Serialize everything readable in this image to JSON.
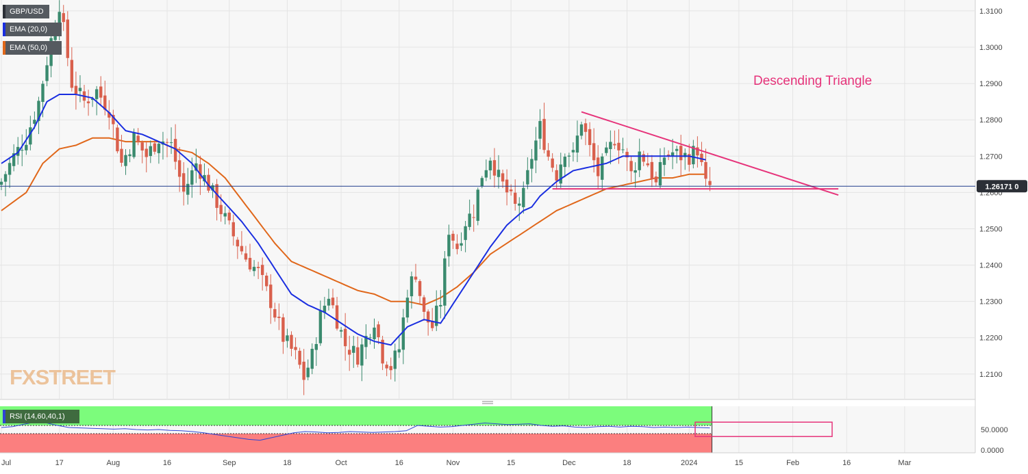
{
  "legend": {
    "pair": "GBP/USD",
    "ema20": "EMA (20,0)",
    "ema50": "EMA (50,0)",
    "rsi": "RSI (14,60,40,1)"
  },
  "watermark": "FXSTREET",
  "annotation": "Descending Triangle",
  "last_price": "1.26171 0",
  "colors": {
    "bull": "#3a8a6e",
    "bear": "#d9604d",
    "ema20": "#1a2ee0",
    "ema50": "#e0671a",
    "triangle": "#e6337a",
    "price_line": "#1f3a8a",
    "rsi_line": "#2f45d6",
    "rsi_upper_zone": "#7cfc7c",
    "rsi_lower_zone": "#fb7f7f",
    "label_bg": "#2b2f36"
  },
  "chart_data": {
    "type": "candlestick",
    "instrument": "GBP/USD",
    "y_range": [
      1.203,
      1.313
    ],
    "y_ticks": [
      "1.3100",
      "1.3000",
      "1.2900",
      "1.2800",
      "1.2700",
      "1.2600",
      "1.2500",
      "1.2400",
      "1.2300",
      "1.2200",
      "1.2100"
    ],
    "x_tick_labels": [
      "Jul",
      "17",
      "Aug",
      "16",
      "Sep",
      "18",
      "Oct",
      "16",
      "Nov",
      "15",
      "Dec",
      "18",
      "2024",
      "15",
      "Feb",
      "16",
      "Mar"
    ],
    "current_price": 1.26171,
    "anchors": [
      [
        0,
        1.263
      ],
      [
        3,
        1.27
      ],
      [
        6,
        1.275
      ],
      [
        9,
        1.285
      ],
      [
        12,
        1.302
      ],
      [
        14,
        1.312
      ],
      [
        17,
        1.29
      ],
      [
        20,
        1.285
      ],
      [
        23,
        1.288
      ],
      [
        26,
        1.283
      ],
      [
        29,
        1.268
      ],
      [
        32,
        1.275
      ],
      [
        35,
        1.27
      ],
      [
        38,
        1.275
      ],
      [
        41,
        1.273
      ],
      [
        44,
        1.26
      ],
      [
        47,
        1.268
      ],
      [
        50,
        1.262
      ],
      [
        53,
        1.255
      ],
      [
        56,
        1.248
      ],
      [
        59,
        1.242
      ],
      [
        62,
        1.238
      ],
      [
        65,
        1.23
      ],
      [
        68,
        1.22
      ],
      [
        71,
        1.215
      ],
      [
        73,
        1.209
      ],
      [
        75,
        1.215
      ],
      [
        77,
        1.226
      ],
      [
        79,
        1.232
      ],
      [
        81,
        1.225
      ],
      [
        83,
        1.218
      ],
      [
        86,
        1.215
      ],
      [
        88,
        1.22
      ],
      [
        90,
        1.225
      ],
      [
        92,
        1.215
      ],
      [
        94,
        1.212
      ],
      [
        96,
        1.217
      ],
      [
        98,
        1.233
      ],
      [
        100,
        1.238
      ],
      [
        102,
        1.226
      ],
      [
        104,
        1.223
      ],
      [
        106,
        1.23
      ],
      [
        108,
        1.25
      ],
      [
        110,
        1.245
      ],
      [
        112,
        1.252
      ],
      [
        114,
        1.255
      ],
      [
        116,
        1.265
      ],
      [
        118,
        1.27
      ],
      [
        120,
        1.264
      ],
      [
        122,
        1.26
      ],
      [
        124,
        1.256
      ],
      [
        126,
        1.259
      ],
      [
        128,
        1.27
      ],
      [
        130,
        1.278
      ],
      [
        132,
        1.27
      ],
      [
        134,
        1.265
      ],
      [
        136,
        1.272
      ],
      [
        138,
        1.27
      ],
      [
        140,
        1.28
      ],
      [
        142,
        1.272
      ],
      [
        144,
        1.265
      ],
      [
        146,
        1.27
      ],
      [
        148,
        1.275
      ],
      [
        150,
        1.272
      ],
      [
        152,
        1.265
      ],
      [
        154,
        1.271
      ],
      [
        156,
        1.268
      ],
      [
        158,
        1.262
      ],
      [
        160,
        1.27
      ],
      [
        162,
        1.271
      ],
      [
        164,
        1.27
      ],
      [
        166,
        1.27
      ],
      [
        168,
        1.272
      ],
      [
        170,
        1.262
      ],
      [
        171,
        1.2617
      ]
    ],
    "ema20_anchors": [
      [
        0,
        1.268
      ],
      [
        4,
        1.271
      ],
      [
        8,
        1.278
      ],
      [
        11,
        1.285
      ],
      [
        14,
        1.287
      ],
      [
        18,
        1.287
      ],
      [
        22,
        1.286
      ],
      [
        26,
        1.282
      ],
      [
        30,
        1.277
      ],
      [
        34,
        1.276
      ],
      [
        38,
        1.274
      ],
      [
        42,
        1.272
      ],
      [
        46,
        1.268
      ],
      [
        50,
        1.262
      ],
      [
        54,
        1.257
      ],
      [
        58,
        1.252
      ],
      [
        62,
        1.246
      ],
      [
        66,
        1.239
      ],
      [
        70,
        1.232
      ],
      [
        74,
        1.229
      ],
      [
        78,
        1.227
      ],
      [
        82,
        1.224
      ],
      [
        86,
        1.221
      ],
      [
        90,
        1.219
      ],
      [
        94,
        1.218
      ],
      [
        98,
        1.223
      ],
      [
        102,
        1.225
      ],
      [
        106,
        1.224
      ],
      [
        110,
        1.231
      ],
      [
        114,
        1.238
      ],
      [
        118,
        1.245
      ],
      [
        122,
        1.251
      ],
      [
        126,
        1.255
      ],
      [
        128,
        1.256
      ],
      [
        130,
        1.259
      ],
      [
        134,
        1.263
      ],
      [
        138,
        1.266
      ],
      [
        142,
        1.267
      ],
      [
        146,
        1.268
      ],
      [
        150,
        1.27
      ],
      [
        154,
        1.27
      ],
      [
        158,
        1.27
      ],
      [
        162,
        1.27
      ],
      [
        166,
        1.27
      ],
      [
        170,
        1.269
      ]
    ],
    "ema50_anchors": [
      [
        0,
        1.255
      ],
      [
        6,
        1.26
      ],
      [
        10,
        1.268
      ],
      [
        14,
        1.272
      ],
      [
        18,
        1.273
      ],
      [
        22,
        1.275
      ],
      [
        26,
        1.275
      ],
      [
        30,
        1.274
      ],
      [
        34,
        1.274
      ],
      [
        38,
        1.274
      ],
      [
        42,
        1.272
      ],
      [
        46,
        1.271
      ],
      [
        50,
        1.268
      ],
      [
        54,
        1.264
      ],
      [
        58,
        1.258
      ],
      [
        62,
        1.252
      ],
      [
        66,
        1.246
      ],
      [
        70,
        1.241
      ],
      [
        74,
        1.239
      ],
      [
        78,
        1.237
      ],
      [
        82,
        1.235
      ],
      [
        86,
        1.233
      ],
      [
        90,
        1.232
      ],
      [
        94,
        1.23
      ],
      [
        98,
        1.23
      ],
      [
        102,
        1.229
      ],
      [
        106,
        1.231
      ],
      [
        110,
        1.234
      ],
      [
        114,
        1.238
      ],
      [
        118,
        1.243
      ],
      [
        122,
        1.246
      ],
      [
        126,
        1.249
      ],
      [
        130,
        1.252
      ],
      [
        134,
        1.255
      ],
      [
        138,
        1.257
      ],
      [
        142,
        1.259
      ],
      [
        146,
        1.261
      ],
      [
        150,
        1.262
      ],
      [
        154,
        1.263
      ],
      [
        158,
        1.264
      ],
      [
        162,
        1.264
      ],
      [
        166,
        1.265
      ],
      [
        170,
        1.265
      ]
    ],
    "triangle": {
      "resistance": [
        [
          140,
          1.2822
        ],
        [
          173,
          1.27
        ]
      ],
      "support": [
        [
          133,
          1.261
        ],
        [
          202,
          1.261
        ]
      ]
    },
    "rsi": {
      "range": [
        0,
        100
      ],
      "levels": [
        60,
        40
      ],
      "y_ticks": [
        "50.0000",
        "0.0000"
      ],
      "values": [
        55,
        57,
        63,
        68,
        66,
        60,
        55,
        54,
        53,
        52,
        51,
        52,
        50,
        49,
        50,
        48,
        47,
        45,
        42,
        38,
        34,
        30,
        26,
        24,
        30,
        36,
        42,
        45,
        44,
        42,
        43,
        45,
        44,
        43,
        44,
        45,
        47,
        60,
        58,
        56,
        57,
        60,
        63,
        66,
        64,
        62,
        63,
        64,
        60,
        58,
        59,
        56,
        55,
        57,
        58,
        56,
        58,
        57,
        55,
        56,
        55,
        56,
        55,
        54
      ]
    }
  }
}
